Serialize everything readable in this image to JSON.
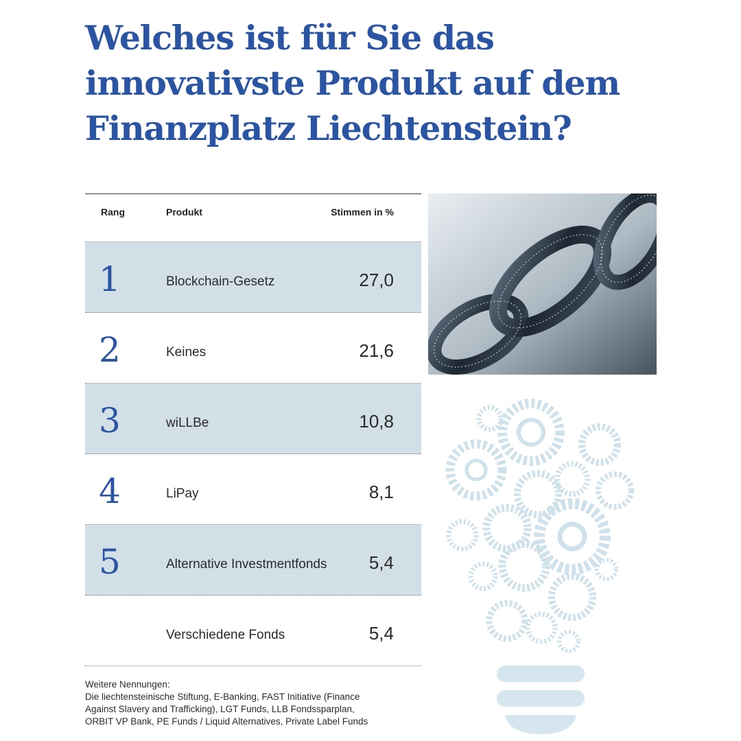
{
  "title": {
    "line1": "Welches ist für Sie das",
    "line2": "innovativste Produkt auf dem",
    "line3": "Finanzplatz Liechtenstein?"
  },
  "table": {
    "headers": {
      "rank": "Rang",
      "product": "Produkt",
      "votes": "Stimmen in %"
    },
    "rows": [
      {
        "rank": "1",
        "product": "Blockchain-Gesetz",
        "votes": "27,0",
        "shaded": true
      },
      {
        "rank": "2",
        "product": "Keines",
        "votes": "21,6",
        "shaded": false
      },
      {
        "rank": "3",
        "product": "wiLLBe",
        "votes": "10,8",
        "shaded": true
      },
      {
        "rank": "4",
        "product": "LiPay",
        "votes": "8,1",
        "shaded": false
      },
      {
        "rank": "5",
        "product": "Alternative Investmentfonds",
        "votes": "5,4",
        "shaded": true
      },
      {
        "rank": "",
        "product": "Verschiedene Fonds",
        "votes": "5,4",
        "shaded": false
      }
    ]
  },
  "footnote": {
    "heading": "Weitere Nennungen:",
    "lines": [
      "Die liechtensteinische Stiftung, E-Banking, FAST Initiative (Finance",
      "Against Slavery and Trafficking), LGT Funds, LLB Fondssparplan,",
      "ORBIT VP Bank, PE Funds / Liquid Alternatives, Private Label Funds"
    ]
  },
  "images": {
    "photo": "blockchain-chain-image",
    "illustration": "gear-lightbulb-illustration"
  },
  "colors": {
    "accent": "#2b55a3",
    "row_shade": "#d2dfe7",
    "illustration": "#cfe1ea"
  }
}
